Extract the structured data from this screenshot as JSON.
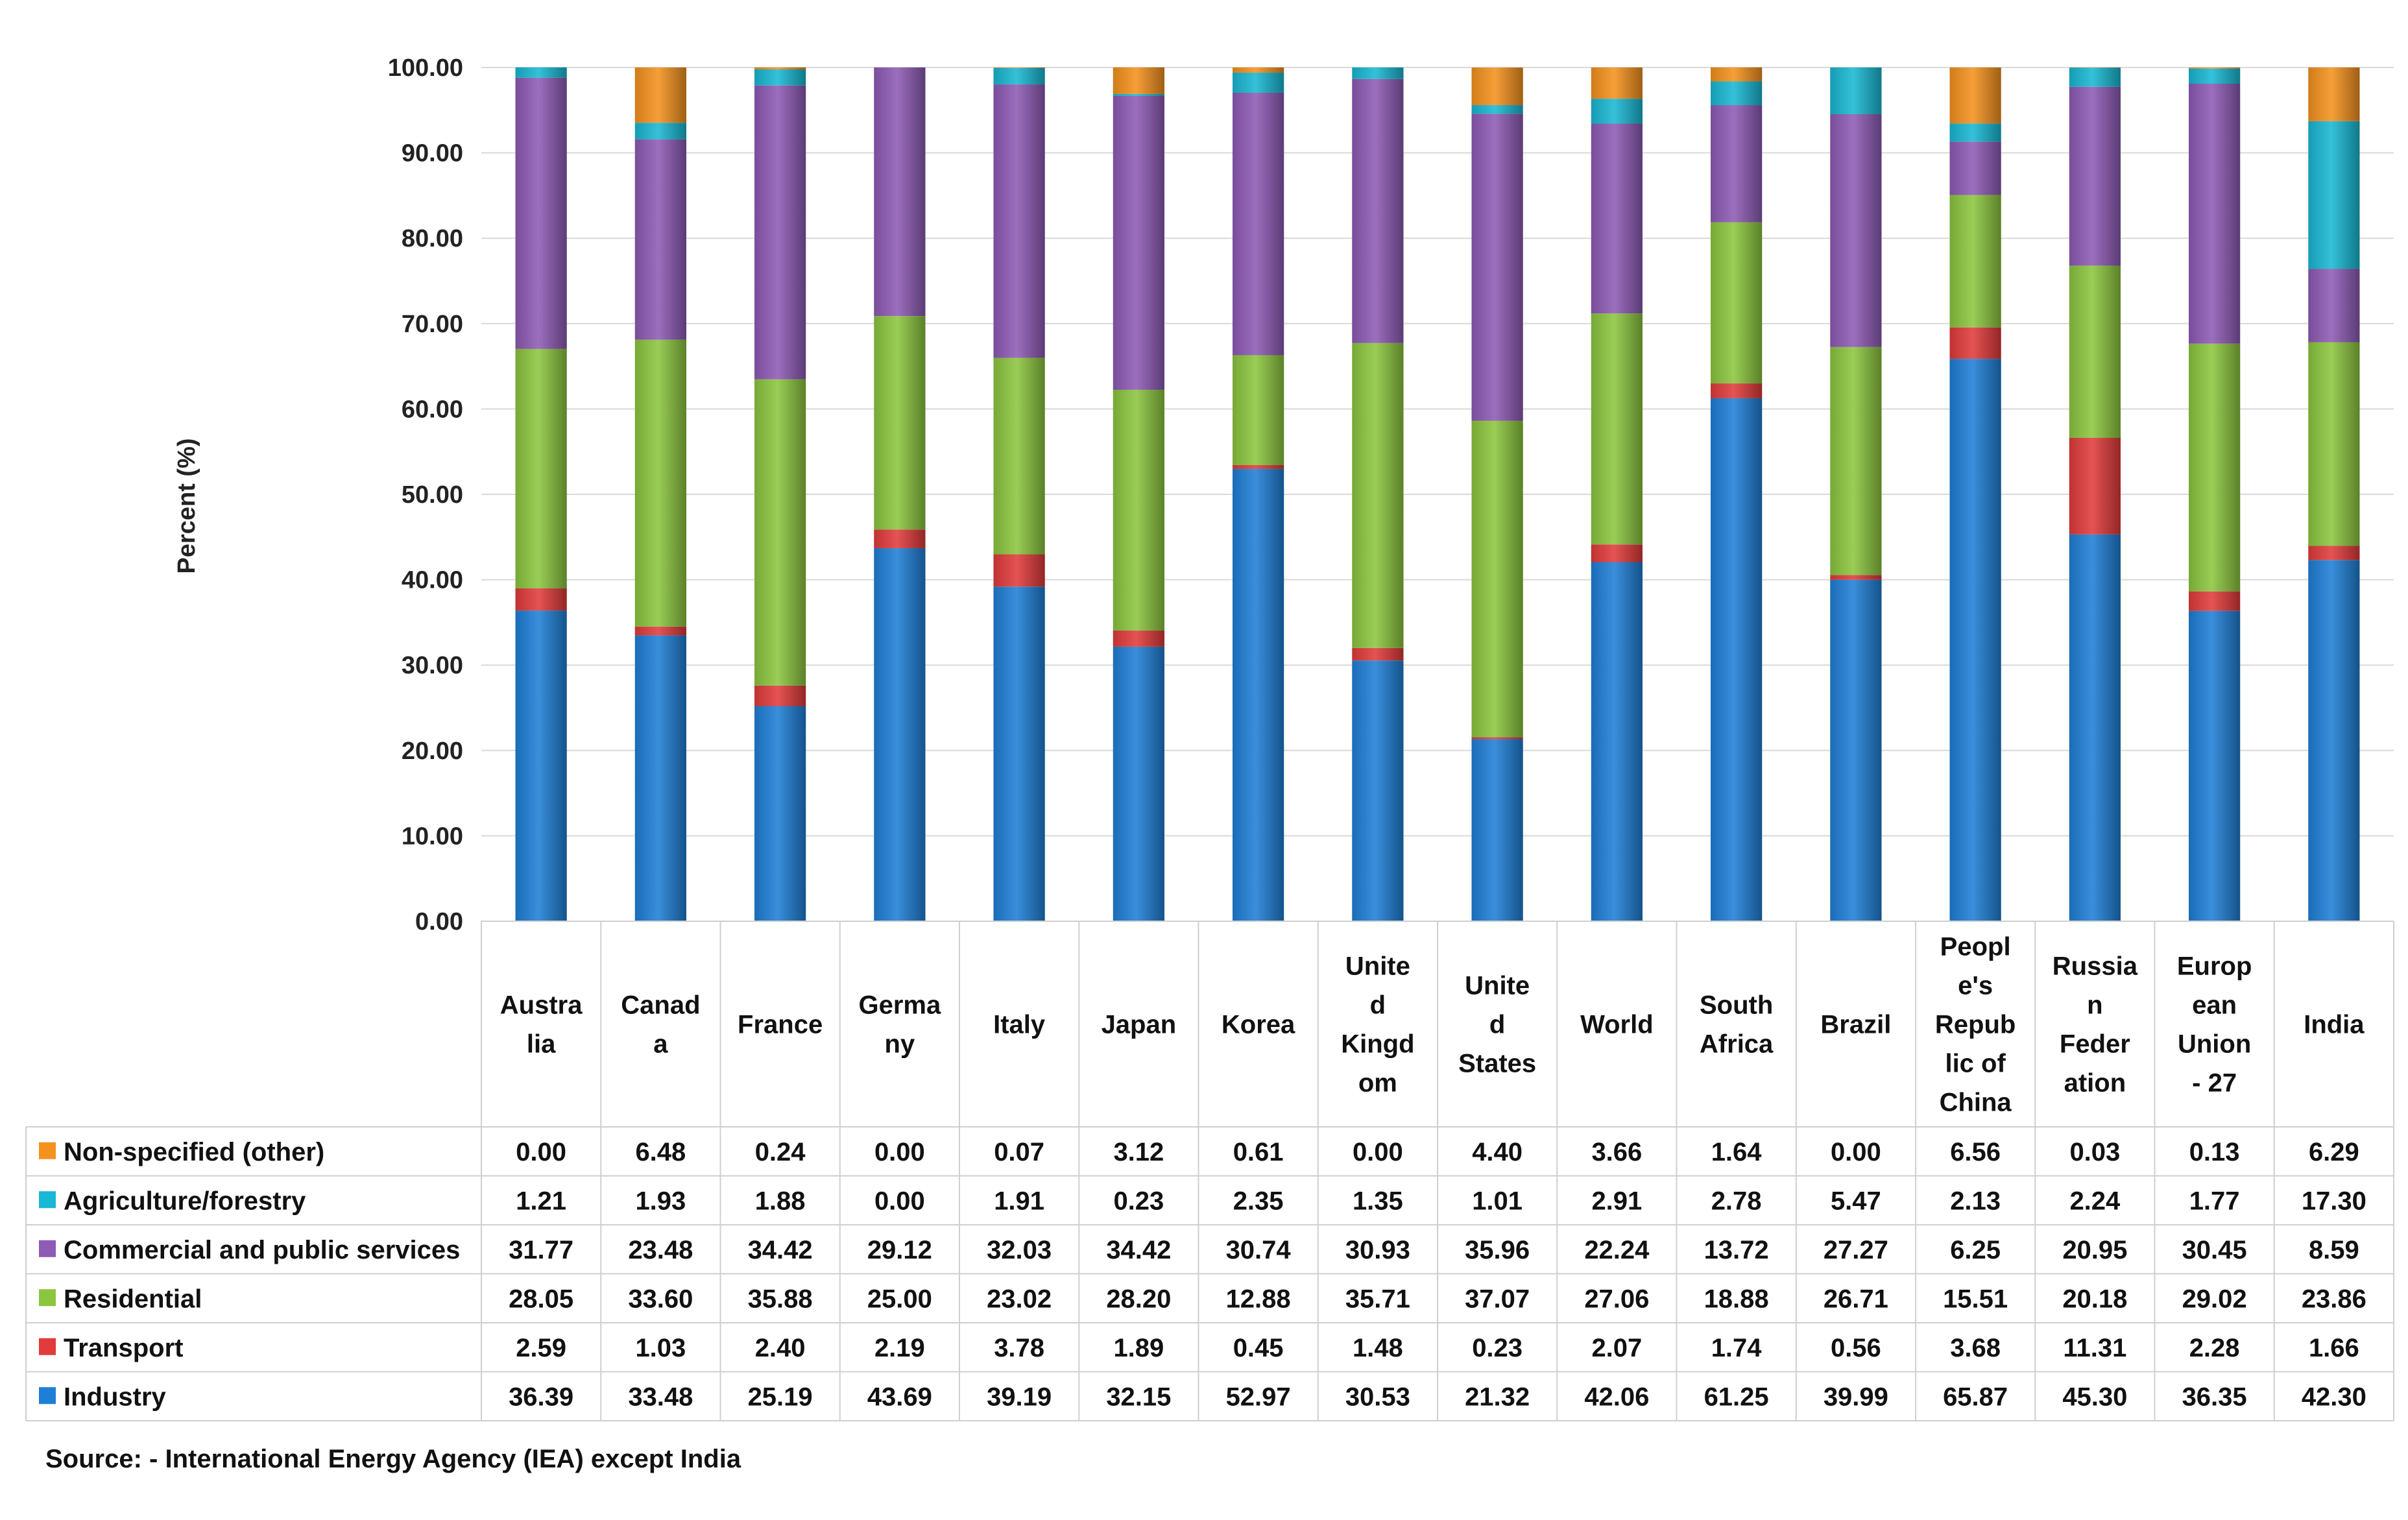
{
  "chart_data": {
    "type": "bar",
    "stacked": true,
    "ylabel": "Percent (%)",
    "ylim": [
      0,
      100
    ],
    "yticks": [
      "0.00",
      "10.00",
      "20.00",
      "30.00",
      "40.00",
      "50.00",
      "60.00",
      "70.00",
      "80.00",
      "90.00",
      "100.00"
    ],
    "grid": true,
    "categories": [
      [
        "Austra",
        "lia"
      ],
      [
        "Canad",
        "a"
      ],
      [
        "France"
      ],
      [
        "Germa",
        "ny"
      ],
      [
        "Italy"
      ],
      [
        "Japan"
      ],
      [
        "Korea"
      ],
      [
        "Unite",
        "d",
        "Kingd",
        "om"
      ],
      [
        "Unite",
        "d",
        "States"
      ],
      [
        "World"
      ],
      [
        "South",
        "Africa"
      ],
      [
        "Brazil"
      ],
      [
        "Peopl",
        "e's",
        "Repub",
        "lic of",
        "China"
      ],
      [
        "Russia",
        "n",
        "Feder",
        "ation"
      ],
      [
        "Europ",
        "ean",
        "Union",
        "- 27"
      ],
      [
        "India"
      ]
    ],
    "series": [
      {
        "name": "Industry",
        "color": "#1f7fd6",
        "values": [
          "36.39",
          "33.48",
          "25.19",
          "43.69",
          "39.19",
          "32.15",
          "52.97",
          "30.53",
          "21.32",
          "42.06",
          "61.25",
          "39.99",
          "65.87",
          "45.30",
          "36.35",
          "42.30"
        ]
      },
      {
        "name": "Transport",
        "color": "#e23b3b",
        "values": [
          "2.59",
          "1.03",
          "2.40",
          "2.19",
          "3.78",
          "1.89",
          "0.45",
          "1.48",
          "0.23",
          "2.07",
          "1.74",
          "0.56",
          "3.68",
          "11.31",
          "2.28",
          "1.66"
        ]
      },
      {
        "name": "Residential",
        "color": "#8cc63f",
        "values": [
          "28.05",
          "33.60",
          "35.88",
          "25.00",
          "23.02",
          "28.20",
          "12.88",
          "35.71",
          "37.07",
          "27.06",
          "18.88",
          "26.71",
          "15.51",
          "20.18",
          "29.02",
          "23.86"
        ]
      },
      {
        "name": "Commercial and public services",
        "color": "#8e5bb5",
        "values": [
          "31.77",
          "23.48",
          "34.42",
          "29.12",
          "32.03",
          "34.42",
          "30.74",
          "30.93",
          "35.96",
          "22.24",
          "13.72",
          "27.27",
          "6.25",
          "20.95",
          "30.45",
          "8.59"
        ]
      },
      {
        "name": "Agriculture/forestry",
        "color": "#19b8d4",
        "values": [
          "1.21",
          "1.93",
          "1.88",
          "0.00",
          "1.91",
          "0.23",
          "2.35",
          "1.35",
          "1.01",
          "2.91",
          "2.78",
          "5.47",
          "2.13",
          "2.24",
          "1.77",
          "17.30"
        ]
      },
      {
        "name": "Non-specified (other)",
        "color": "#f5921e",
        "values": [
          "0.00",
          "6.48",
          "0.24",
          "0.00",
          "0.07",
          "3.12",
          "0.61",
          "0.00",
          "4.40",
          "3.66",
          "1.64",
          "0.00",
          "6.56",
          "0.03",
          "0.13",
          "6.29"
        ]
      }
    ],
    "table_row_order": [
      "Non-specified (other)",
      "Agriculture/forestry",
      "Commercial and public services",
      "Residential",
      "Transport",
      "Industry"
    ],
    "source": "Source: - International Energy Agency (IEA) except India"
  }
}
